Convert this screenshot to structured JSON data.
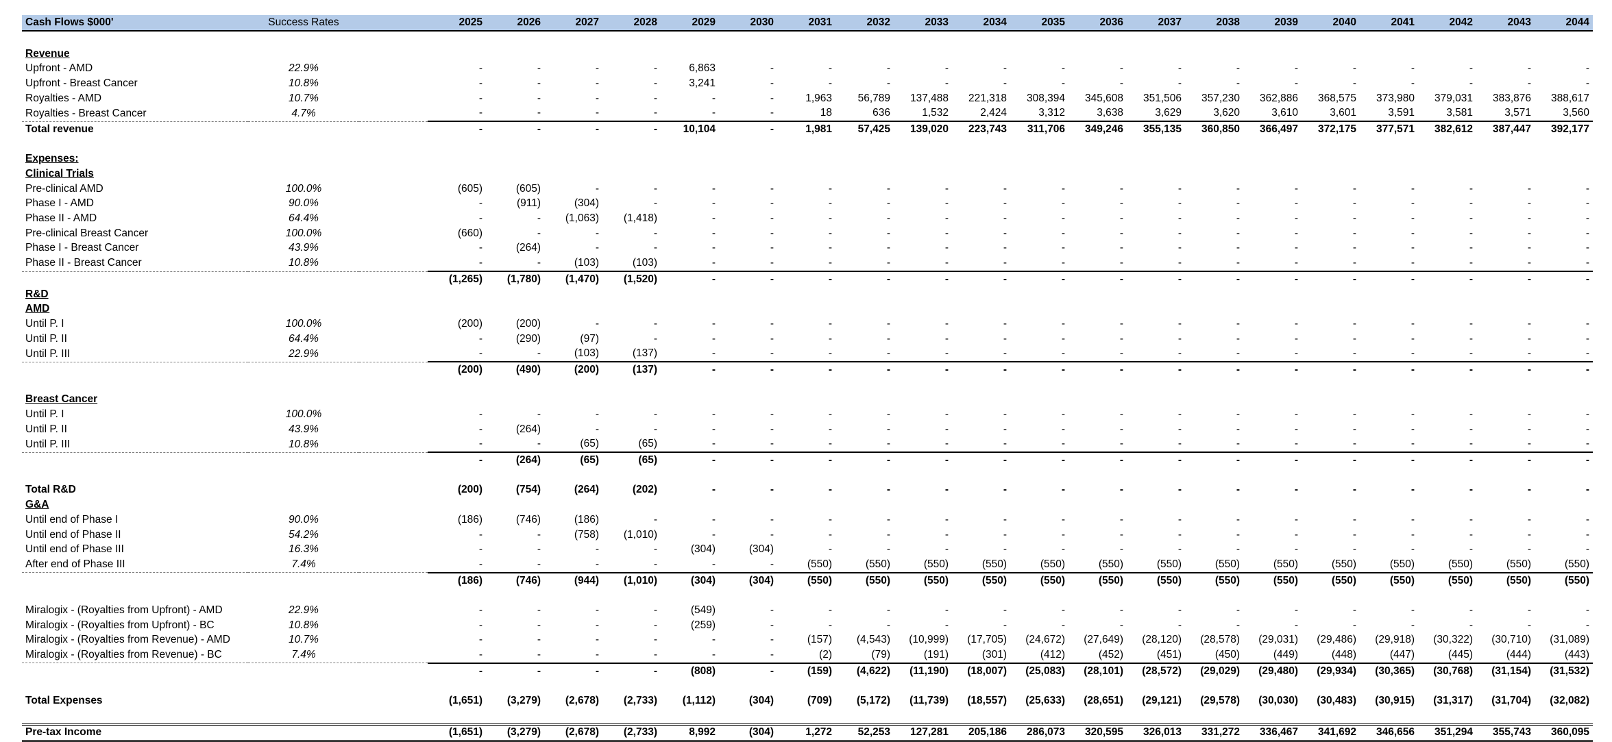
{
  "sheet": {
    "header": {
      "label": "Cash Flows $000'",
      "rate": "Success Rates",
      "years": [
        "2025",
        "2026",
        "2027",
        "2028",
        "2029",
        "2030",
        "2031",
        "2032",
        "2033",
        "2034",
        "2035",
        "2036",
        "2037",
        "2038",
        "2039",
        "2040",
        "2041",
        "2042",
        "2043",
        "2044"
      ]
    },
    "rows": [
      {
        "type": "blank"
      },
      {
        "type": "section",
        "label": "Revenue"
      },
      {
        "type": "data",
        "label": "Upfront - AMD",
        "rate": "22.9%",
        "values": [
          "-",
          "-",
          "-",
          "-",
          "6,863",
          "-",
          "-",
          "-",
          "-",
          "-",
          "-",
          "-",
          "-",
          "-",
          "-",
          "-",
          "-",
          "-",
          "-",
          "-"
        ]
      },
      {
        "type": "data",
        "label": "Upfront - Breast Cancer",
        "rate": "10.8%",
        "values": [
          "-",
          "-",
          "-",
          "-",
          "3,241",
          "-",
          "-",
          "-",
          "-",
          "-",
          "-",
          "-",
          "-",
          "-",
          "-",
          "-",
          "-",
          "-",
          "-",
          "-"
        ]
      },
      {
        "type": "data",
        "label": "Royalties - AMD",
        "rate": "10.7%",
        "values": [
          "-",
          "-",
          "-",
          "-",
          "-",
          "-",
          "1,963",
          "56,789",
          "137,488",
          "221,318",
          "308,394",
          "345,608",
          "351,506",
          "357,230",
          "362,886",
          "368,575",
          "373,980",
          "379,031",
          "383,876",
          "388,617"
        ]
      },
      {
        "type": "data",
        "sub": true,
        "label": "Royalties - Breast Cancer",
        "rate": "4.7%",
        "values": [
          "-",
          "-",
          "-",
          "-",
          "-",
          "-",
          "18",
          "636",
          "1,532",
          "2,424",
          "3,312",
          "3,638",
          "3,629",
          "3,620",
          "3,610",
          "3,601",
          "3,591",
          "3,581",
          "3,571",
          "3,560"
        ]
      },
      {
        "type": "total",
        "label": "Total revenue",
        "values": [
          "-",
          "-",
          "-",
          "-",
          "10,104",
          "-",
          "1,981",
          "57,425",
          "139,020",
          "223,743",
          "311,706",
          "349,246",
          "355,135",
          "360,850",
          "366,497",
          "372,175",
          "377,571",
          "382,612",
          "387,447",
          "392,177"
        ]
      },
      {
        "type": "blank"
      },
      {
        "type": "section",
        "label": "Expenses:"
      },
      {
        "type": "section",
        "label": "Clinical Trials"
      },
      {
        "type": "data",
        "label": "Pre-clinical AMD",
        "rate": "100.0%",
        "values": [
          "(605)",
          "(605)",
          "-",
          "-",
          "-",
          "-",
          "-",
          "-",
          "-",
          "-",
          "-",
          "-",
          "-",
          "-",
          "-",
          "-",
          "-",
          "-",
          "-",
          "-"
        ]
      },
      {
        "type": "data",
        "label": "Phase I - AMD",
        "rate": "90.0%",
        "values": [
          "-",
          "(911)",
          "(304)",
          "-",
          "-",
          "-",
          "-",
          "-",
          "-",
          "-",
          "-",
          "-",
          "-",
          "-",
          "-",
          "-",
          "-",
          "-",
          "-",
          "-"
        ]
      },
      {
        "type": "data",
        "label": "Phase II - AMD",
        "rate": "64.4%",
        "values": [
          "-",
          "-",
          "(1,063)",
          "(1,418)",
          "-",
          "-",
          "-",
          "-",
          "-",
          "-",
          "-",
          "-",
          "-",
          "-",
          "-",
          "-",
          "-",
          "-",
          "-",
          "-"
        ]
      },
      {
        "type": "data",
        "label": "Pre-clinical Breast Cancer",
        "rate": "100.0%",
        "values": [
          "(660)",
          "-",
          "-",
          "-",
          "-",
          "-",
          "-",
          "-",
          "-",
          "-",
          "-",
          "-",
          "-",
          "-",
          "-",
          "-",
          "-",
          "-",
          "-",
          "-"
        ]
      },
      {
        "type": "data",
        "label": "Phase I - Breast Cancer",
        "rate": "43.9%",
        "values": [
          "-",
          "(264)",
          "-",
          "-",
          "-",
          "-",
          "-",
          "-",
          "-",
          "-",
          "-",
          "-",
          "-",
          "-",
          "-",
          "-",
          "-",
          "-",
          "-",
          "-"
        ]
      },
      {
        "type": "data",
        "sub": true,
        "label": "Phase II - Breast Cancer",
        "rate": "10.8%",
        "values": [
          "-",
          "-",
          "(103)",
          "(103)",
          "-",
          "-",
          "-",
          "-",
          "-",
          "-",
          "-",
          "-",
          "-",
          "-",
          "-",
          "-",
          "-",
          "-",
          "-",
          "-"
        ]
      },
      {
        "type": "total",
        "label": "",
        "values": [
          "(1,265)",
          "(1,780)",
          "(1,470)",
          "(1,520)",
          "-",
          "-",
          "-",
          "-",
          "-",
          "-",
          "-",
          "-",
          "-",
          "-",
          "-",
          "-",
          "-",
          "-",
          "-",
          "-"
        ]
      },
      {
        "type": "section",
        "label": "R&D"
      },
      {
        "type": "section",
        "label": "AMD"
      },
      {
        "type": "data",
        "label": "Until P. I",
        "rate": "100.0%",
        "values": [
          "(200)",
          "(200)",
          "-",
          "-",
          "-",
          "-",
          "-",
          "-",
          "-",
          "-",
          "-",
          "-",
          "-",
          "-",
          "-",
          "-",
          "-",
          "-",
          "-",
          "-"
        ]
      },
      {
        "type": "data",
        "label": "Until P. II",
        "rate": "64.4%",
        "values": [
          "-",
          "(290)",
          "(97)",
          "-",
          "-",
          "-",
          "-",
          "-",
          "-",
          "-",
          "-",
          "-",
          "-",
          "-",
          "-",
          "-",
          "-",
          "-",
          "-",
          "-"
        ]
      },
      {
        "type": "data",
        "sub": true,
        "label": "Until P. III",
        "rate": "22.9%",
        "values": [
          "-",
          "-",
          "(103)",
          "(137)",
          "-",
          "-",
          "-",
          "-",
          "-",
          "-",
          "-",
          "-",
          "-",
          "-",
          "-",
          "-",
          "-",
          "-",
          "-",
          "-"
        ]
      },
      {
        "type": "total",
        "label": "",
        "values": [
          "(200)",
          "(490)",
          "(200)",
          "(137)",
          "-",
          "-",
          "-",
          "-",
          "-",
          "-",
          "-",
          "-",
          "-",
          "-",
          "-",
          "-",
          "-",
          "-",
          "-",
          "-"
        ]
      },
      {
        "type": "blank"
      },
      {
        "type": "section",
        "label": "Breast Cancer"
      },
      {
        "type": "data",
        "label": "Until P. I",
        "rate": "100.0%",
        "values": [
          "-",
          "-",
          "-",
          "-",
          "-",
          "-",
          "-",
          "-",
          "-",
          "-",
          "-",
          "-",
          "-",
          "-",
          "-",
          "-",
          "-",
          "-",
          "-",
          "-"
        ]
      },
      {
        "type": "data",
        "label": "Until P. II",
        "rate": "43.9%",
        "values": [
          "-",
          "(264)",
          "-",
          "-",
          "-",
          "-",
          "-",
          "-",
          "-",
          "-",
          "-",
          "-",
          "-",
          "-",
          "-",
          "-",
          "-",
          "-",
          "-",
          "-"
        ]
      },
      {
        "type": "data",
        "sub": true,
        "label": "Until P. III",
        "rate": "10.8%",
        "values": [
          "-",
          "-",
          "(65)",
          "(65)",
          "-",
          "-",
          "-",
          "-",
          "-",
          "-",
          "-",
          "-",
          "-",
          "-",
          "-",
          "-",
          "-",
          "-",
          "-",
          "-"
        ]
      },
      {
        "type": "total",
        "label": "",
        "values": [
          "-",
          "(264)",
          "(65)",
          "(65)",
          "-",
          "-",
          "-",
          "-",
          "-",
          "-",
          "-",
          "-",
          "-",
          "-",
          "-",
          "-",
          "-",
          "-",
          "-",
          "-"
        ]
      },
      {
        "type": "blank"
      },
      {
        "type": "btotal",
        "label": "Total R&D",
        "values": [
          "(200)",
          "(754)",
          "(264)",
          "(202)",
          "-",
          "-",
          "-",
          "-",
          "-",
          "-",
          "-",
          "-",
          "-",
          "-",
          "-",
          "-",
          "-",
          "-",
          "-",
          "-"
        ]
      },
      {
        "type": "section",
        "label": "G&A"
      },
      {
        "type": "data",
        "label": "Until end of Phase I",
        "rate": "90.0%",
        "values": [
          "(186)",
          "(746)",
          "(186)",
          "-",
          "-",
          "-",
          "-",
          "-",
          "-",
          "-",
          "-",
          "-",
          "-",
          "-",
          "-",
          "-",
          "-",
          "-",
          "-",
          "-"
        ]
      },
      {
        "type": "data",
        "label": "Until end of Phase II",
        "rate": "54.2%",
        "values": [
          "-",
          "-",
          "(758)",
          "(1,010)",
          "-",
          "-",
          "-",
          "-",
          "-",
          "-",
          "-",
          "-",
          "-",
          "-",
          "-",
          "-",
          "-",
          "-",
          "-",
          "-"
        ]
      },
      {
        "type": "data",
        "label": "Until end of Phase III",
        "rate": "16.3%",
        "values": [
          "-",
          "-",
          "-",
          "-",
          "(304)",
          "(304)",
          "-",
          "-",
          "-",
          "-",
          "-",
          "-",
          "-",
          "-",
          "-",
          "-",
          "-",
          "-",
          "-",
          "-"
        ]
      },
      {
        "type": "data",
        "sub": true,
        "label": "After end of Phase III",
        "rate": "7.4%",
        "values": [
          "-",
          "-",
          "-",
          "-",
          "-",
          "-",
          "(550)",
          "(550)",
          "(550)",
          "(550)",
          "(550)",
          "(550)",
          "(550)",
          "(550)",
          "(550)",
          "(550)",
          "(550)",
          "(550)",
          "(550)",
          "(550)"
        ]
      },
      {
        "type": "total",
        "label": "",
        "values": [
          "(186)",
          "(746)",
          "(944)",
          "(1,010)",
          "(304)",
          "(304)",
          "(550)",
          "(550)",
          "(550)",
          "(550)",
          "(550)",
          "(550)",
          "(550)",
          "(550)",
          "(550)",
          "(550)",
          "(550)",
          "(550)",
          "(550)",
          "(550)"
        ]
      },
      {
        "type": "blank"
      },
      {
        "type": "data",
        "label": "Miralogix -  (Royalties from Upfront) - AMD",
        "rate": "22.9%",
        "values": [
          "-",
          "-",
          "-",
          "-",
          "(549)",
          "-",
          "-",
          "-",
          "-",
          "-",
          "-",
          "-",
          "-",
          "-",
          "-",
          "-",
          "-",
          "-",
          "-",
          "-"
        ]
      },
      {
        "type": "data",
        "label": "Miralogix -  (Royalties from Upfront) - BC",
        "rate": "10.8%",
        "values": [
          "-",
          "-",
          "-",
          "-",
          "(259)",
          "-",
          "-",
          "-",
          "-",
          "-",
          "-",
          "-",
          "-",
          "-",
          "-",
          "-",
          "-",
          "-",
          "-",
          "-"
        ]
      },
      {
        "type": "data",
        "label": "Miralogix -  (Royalties from Revenue) - AMD",
        "rate": "10.7%",
        "values": [
          "-",
          "-",
          "-",
          "-",
          "-",
          "-",
          "(157)",
          "(4,543)",
          "(10,999)",
          "(17,705)",
          "(24,672)",
          "(27,649)",
          "(28,120)",
          "(28,578)",
          "(29,031)",
          "(29,486)",
          "(29,918)",
          "(30,322)",
          "(30,710)",
          "(31,089)"
        ]
      },
      {
        "type": "data",
        "sub": true,
        "label": "Miralogix -  (Royalties from Revenue) - BC",
        "rate": "7.4%",
        "values": [
          "-",
          "-",
          "-",
          "-",
          "-",
          "-",
          "(2)",
          "(79)",
          "(191)",
          "(301)",
          "(412)",
          "(452)",
          "(451)",
          "(450)",
          "(449)",
          "(448)",
          "(447)",
          "(445)",
          "(444)",
          "(443)"
        ]
      },
      {
        "type": "total",
        "label": "",
        "values": [
          "-",
          "-",
          "-",
          "-",
          "(808)",
          "-",
          "(159)",
          "(4,622)",
          "(11,190)",
          "(18,007)",
          "(25,083)",
          "(28,101)",
          "(28,572)",
          "(29,029)",
          "(29,480)",
          "(29,934)",
          "(30,365)",
          "(30,768)",
          "(31,154)",
          "(31,532)"
        ]
      },
      {
        "type": "blank"
      },
      {
        "type": "btotal",
        "label": "Total Expenses",
        "values": [
          "(1,651)",
          "(3,279)",
          "(2,678)",
          "(2,733)",
          "(1,112)",
          "(304)",
          "(709)",
          "(5,172)",
          "(11,739)",
          "(18,557)",
          "(25,633)",
          "(28,651)",
          "(29,121)",
          "(29,578)",
          "(30,030)",
          "(30,483)",
          "(30,915)",
          "(31,317)",
          "(31,704)",
          "(32,082)"
        ]
      },
      {
        "type": "blank"
      },
      {
        "type": "final",
        "label": "Pre-tax Income",
        "values": [
          "(1,651)",
          "(3,279)",
          "(2,678)",
          "(2,733)",
          "8,992",
          "(304)",
          "1,272",
          "52,253",
          "127,281",
          "205,186",
          "286,073",
          "320,595",
          "326,013",
          "331,272",
          "336,467",
          "341,692",
          "346,656",
          "351,294",
          "355,743",
          "360,095"
        ]
      }
    ]
  }
}
